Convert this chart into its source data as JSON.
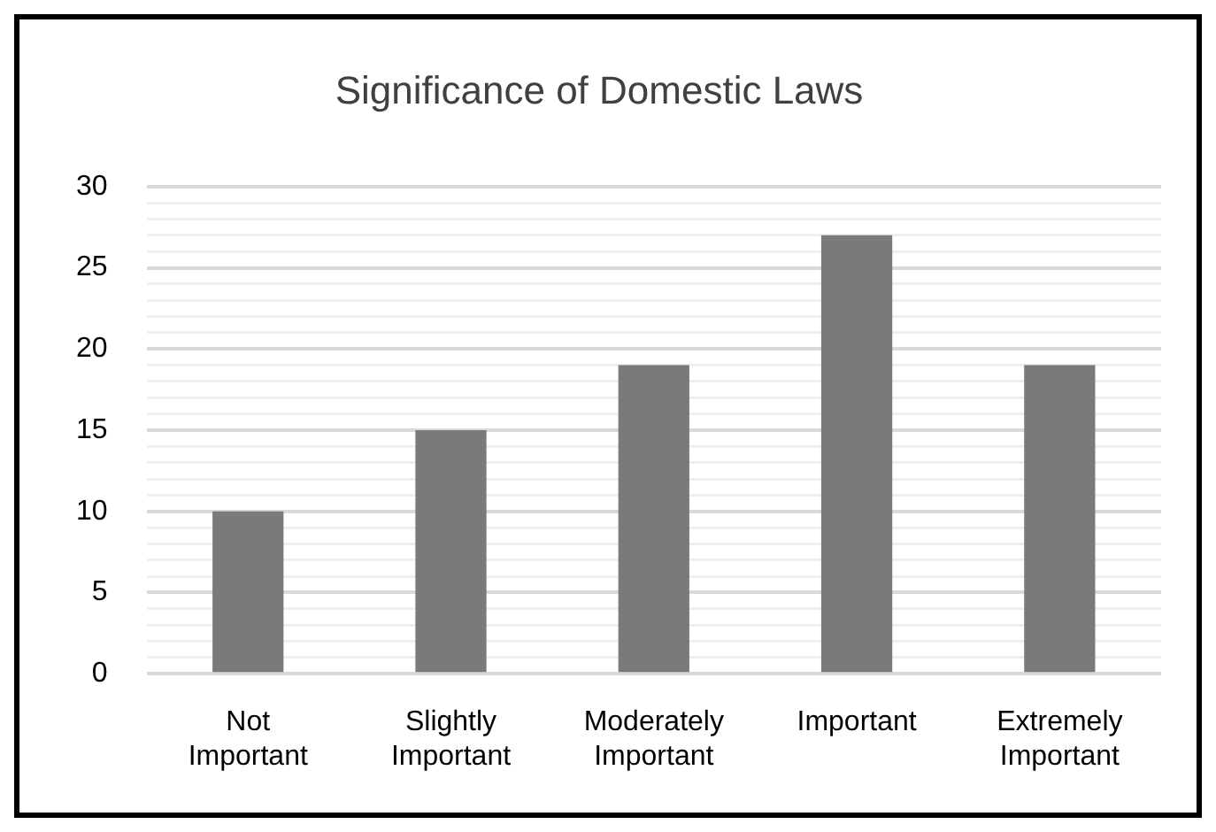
{
  "chart_data": {
    "type": "bar",
    "title": "Significance of Domestic Laws",
    "categories": [
      "Not Important",
      "Slightly Important",
      "Moderately Important",
      "Important",
      "Extremely Important"
    ],
    "values": [
      10,
      15,
      19,
      27,
      19
    ],
    "color": "#7a7a7a",
    "ylim": [
      0,
      30
    ],
    "yticks": [
      0,
      {
        "value": 1,
        "label": null
      },
      {
        "value": 2,
        "label": null
      },
      {
        "value": 3,
        "label": null
      },
      {
        "value": 4,
        "label": null
      },
      5,
      {
        "value": 6,
        "label": null
      },
      {
        "value": 7,
        "label": null
      },
      {
        "value": 8,
        "label": null
      },
      {
        "value": 9,
        "label": null
      },
      10,
      {
        "value": 11,
        "label": null
      },
      {
        "value": 12,
        "label": null
      },
      {
        "value": 13,
        "label": null
      },
      {
        "value": 14,
        "label": null
      },
      15,
      {
        "value": 16,
        "label": null
      },
      {
        "value": 17,
        "label": null
      },
      {
        "value": 18,
        "label": null
      },
      {
        "value": 19,
        "label": null
      },
      20,
      {
        "value": 21,
        "label": null
      },
      {
        "value": 22,
        "label": null
      },
      {
        "value": 23,
        "label": null
      },
      {
        "value": 24,
        "label": null
      },
      25,
      {
        "value": 26,
        "label": null
      },
      {
        "value": 27,
        "label": null
      },
      {
        "value": 28,
        "label": null
      },
      {
        "value": 29,
        "label": null
      },
      30
    ],
    "grid": "y"
  }
}
